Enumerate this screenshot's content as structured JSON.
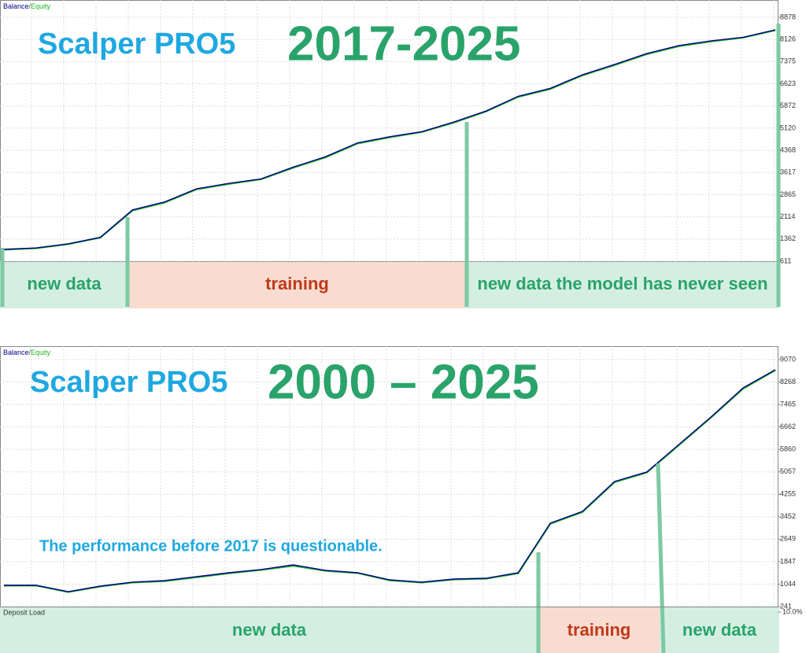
{
  "chart_data": [
    {
      "type": "line",
      "title": "Scalper PRO5",
      "subtitle": "2017-2025",
      "legend_separator": "/",
      "categories": [
        null,
        null,
        null,
        null,
        null,
        null,
        null,
        null,
        null,
        null,
        null,
        null,
        null,
        null,
        null,
        null,
        null,
        null,
        null,
        null,
        null,
        null,
        null,
        null,
        null
      ],
      "series": [
        {
          "name": "Balance",
          "color": "#00008b",
          "values": [
            1011,
            1060,
            1200,
            1420,
            2350,
            2620,
            3065,
            3250,
            3400,
            3800,
            4150,
            4620,
            4830,
            5000,
            5330,
            5700,
            6200,
            6470,
            6930,
            7280,
            7650,
            7920,
            8080,
            8200,
            8452
          ]
        },
        {
          "name": "Equity",
          "color": "#22b422",
          "values": [
            1005,
            1050,
            1190,
            1410,
            2330,
            2600,
            3050,
            3230,
            3390,
            3780,
            4130,
            4600,
            4810,
            4990,
            5310,
            5690,
            6180,
            6450,
            6910,
            7260,
            7630,
            7900,
            8060,
            8190,
            8440
          ]
        }
      ],
      "ylim": [
        611,
        8878
      ],
      "yticks": [
        8878,
        8126,
        7375,
        6623,
        5872,
        5120,
        4368,
        3617,
        2865,
        2114,
        1362,
        611
      ],
      "grid": true,
      "regions": [
        {
          "label": "new data",
          "color": "#d4efe2",
          "text_color": "#2aa36b"
        },
        {
          "label": "training",
          "color": "#f8dcd0",
          "text_color": "#c0391b"
        },
        {
          "label": "new data the model has never seen",
          "color": "#d4efe2",
          "text_color": "#2aa36b"
        }
      ]
    },
    {
      "type": "line",
      "title": "Scalper PRO5",
      "subtitle": "2000 – 2025",
      "legend_separator": "/",
      "annotation": "The performance before 2017 is questionable.",
      "categories": [
        null,
        null,
        null,
        null,
        null,
        null,
        null,
        null,
        null,
        null,
        null,
        null,
        null,
        null,
        null,
        null,
        null,
        null,
        null,
        null,
        null,
        null,
        null,
        null,
        null
      ],
      "series": [
        {
          "name": "Balance",
          "color": "#00008b",
          "values": [
            1000,
            1000,
            775,
            972,
            1113,
            1169,
            1310,
            1450,
            1563,
            1731,
            1535,
            1450,
            1197,
            1113,
            1225,
            1253,
            1450,
            3222,
            3644,
            4712,
            5050,
            6034,
            7018,
            8058,
            8705
          ]
        },
        {
          "name": "Equity",
          "color": "#22b422",
          "values": [
            990,
            995,
            760,
            960,
            1100,
            1150,
            1290,
            1430,
            1550,
            1700,
            1520,
            1440,
            1180,
            1100,
            1210,
            1240,
            1430,
            3200,
            3620,
            4690,
            5030,
            6010,
            7000,
            8030,
            8690
          ]
        }
      ],
      "ylim": [
        241,
        9070
      ],
      "yticks": [
        9070,
        8268,
        7465,
        6662,
        5860,
        5057,
        4255,
        3452,
        2649,
        1847,
        1044,
        241
      ],
      "grid": true,
      "regions": [
        {
          "label": "new data",
          "color": "#d4efe2",
          "text_color": "#2aa36b"
        },
        {
          "label": "training",
          "color": "#f8dcd0",
          "text_color": "#c0391b"
        },
        {
          "label": "new data",
          "color": "#d4efe2",
          "text_color": "#2aa36b"
        }
      ],
      "deposit_load": {
        "title": "Deposit Load",
        "yticks": [
          {
            "value": 10,
            "label": "10.0%"
          }
        ]
      }
    }
  ]
}
